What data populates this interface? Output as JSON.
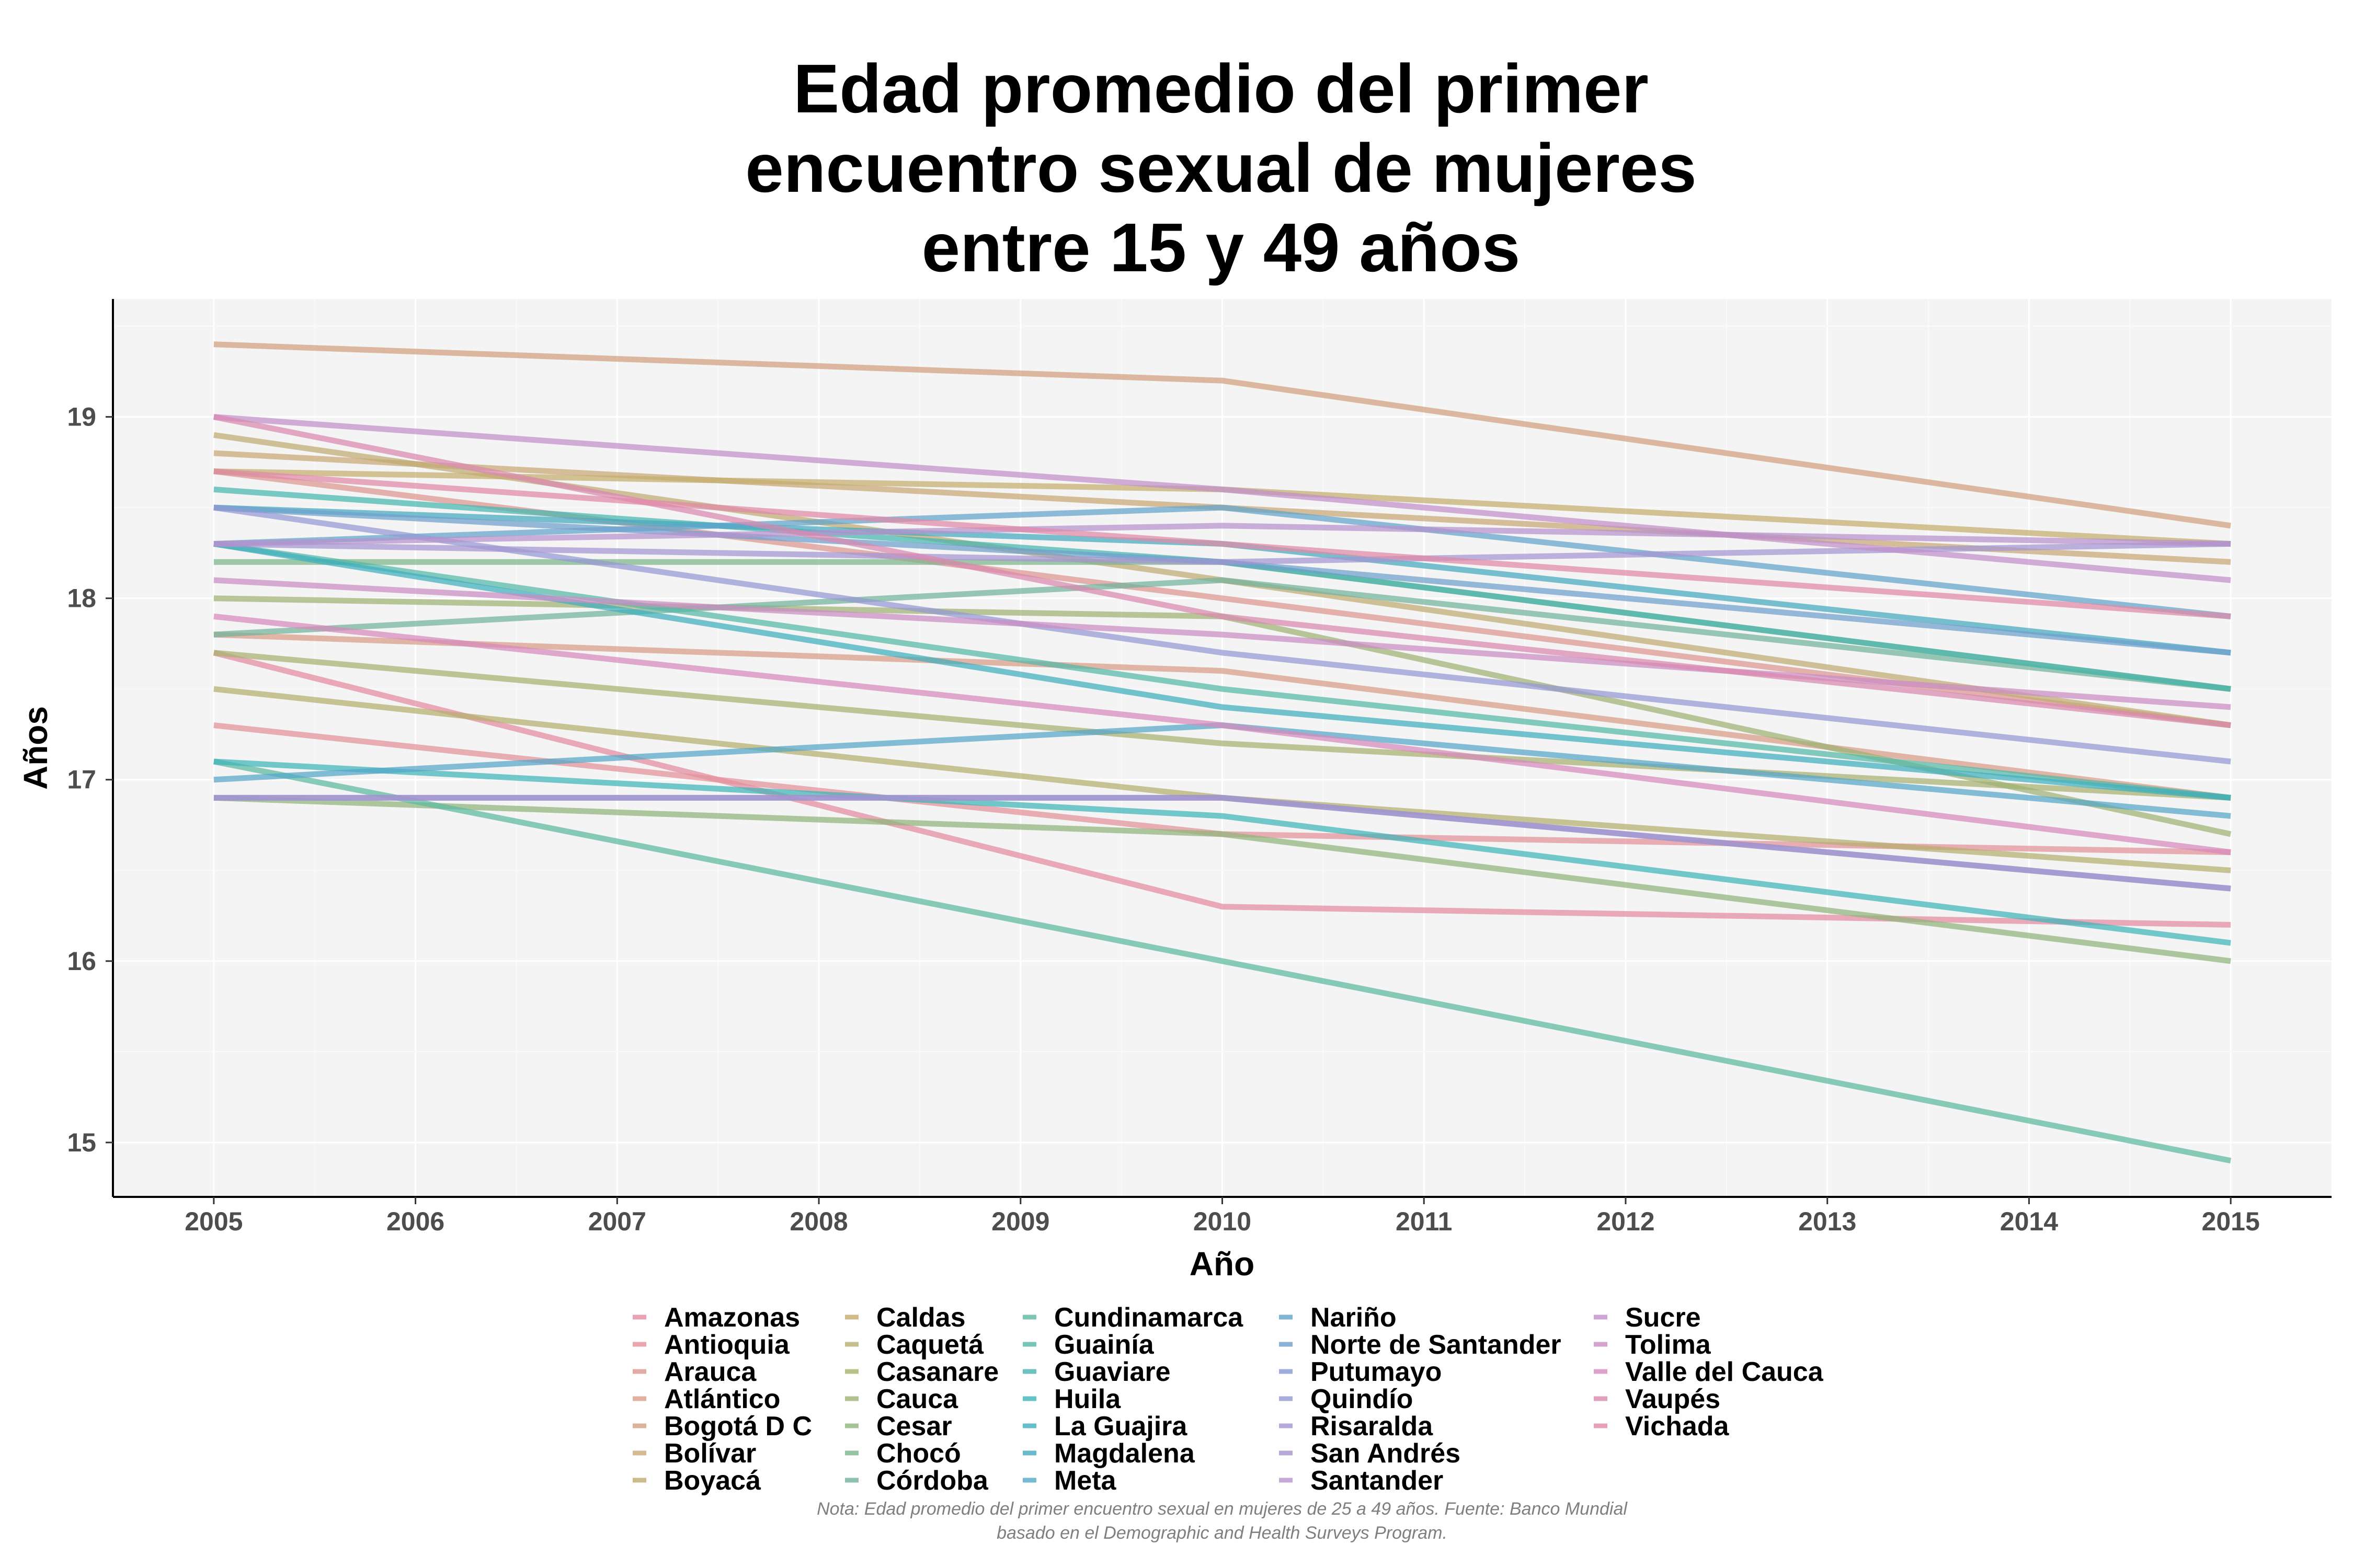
{
  "chart_data": {
    "type": "line",
    "title": [
      "Edad promedio del primer",
      "encuentro sexual de mujeres",
      "entre 15 y 49 años"
    ],
    "xlabel": "Año",
    "ylabel": "Años",
    "x": [
      2005,
      2010,
      2015
    ],
    "x_ticks": [
      "2005",
      "2006",
      "2007",
      "2008",
      "2009",
      "2010",
      "2011",
      "2012",
      "2013",
      "2014",
      "2015"
    ],
    "y_ticks": [
      "15",
      "16",
      "17",
      "18",
      "19"
    ],
    "xlim": [
      2004.5,
      2015.5
    ],
    "ylim": [
      14.7,
      19.65
    ],
    "grid": true,
    "legend_position": "bottom",
    "series": [
      {
        "name": "Amazonas",
        "color": "#E48AA0",
        "values": [
          17.7,
          16.3,
          16.2
        ]
      },
      {
        "name": "Antioquia",
        "color": "#E3909A",
        "values": [
          17.3,
          16.7,
          16.6
        ]
      },
      {
        "name": "Arauca",
        "color": "#DC9590",
        "values": [
          18.7,
          18.0,
          17.3
        ]
      },
      {
        "name": "Atlántico",
        "color": "#D99C86",
        "values": [
          17.8,
          17.6,
          16.9
        ]
      },
      {
        "name": "Bogotá D C",
        "color": "#D2A07E",
        "values": [
          19.4,
          19.2,
          18.4
        ]
      },
      {
        "name": "Bolívar",
        "color": "#C9A877",
        "values": [
          18.8,
          18.5,
          18.2
        ]
      },
      {
        "name": "Boyacá",
        "color": "#BFAA72",
        "values": [
          18.9,
          18.1,
          17.3
        ]
      },
      {
        "name": "Caldas",
        "color": "#C4AD6E",
        "values": [
          18.7,
          18.6,
          18.3
        ]
      },
      {
        "name": "Caquetá",
        "color": "#B5AF6D",
        "values": [
          17.5,
          16.9,
          16.5
        ]
      },
      {
        "name": "Casanare",
        "color": "#A8B06F",
        "values": [
          17.7,
          17.2,
          16.9
        ]
      },
      {
        "name": "Cauca",
        "color": "#9EB274",
        "values": [
          18.0,
          17.9,
          16.7
        ]
      },
      {
        "name": "Cesar",
        "color": "#8FB47C",
        "values": [
          16.9,
          16.7,
          16.0
        ]
      },
      {
        "name": "Chocó",
        "color": "#7DB58A",
        "values": [
          18.2,
          18.2,
          17.5
        ]
      },
      {
        "name": "Córdoba",
        "color": "#72B39B",
        "values": [
          17.8,
          18.1,
          17.5
        ]
      },
      {
        "name": "Cundinamarca",
        "color": "#5DB8A0",
        "values": [
          17.1,
          16.0,
          14.9
        ]
      },
      {
        "name": "Guainía",
        "color": "#55B7A8",
        "values": [
          18.3,
          17.5,
          16.9
        ]
      },
      {
        "name": "Guaviare",
        "color": "#46B5AF",
        "values": [
          18.6,
          18.2,
          17.5
        ]
      },
      {
        "name": "Huila",
        "color": "#3FB4B8",
        "values": [
          17.1,
          16.8,
          16.1
        ]
      },
      {
        "name": "La Guajira",
        "color": "#3EAFBC",
        "values": [
          18.3,
          17.4,
          16.9
        ]
      },
      {
        "name": "Magdalena",
        "color": "#45A9BF",
        "values": [
          18.5,
          18.3,
          17.7
        ]
      },
      {
        "name": "Meta",
        "color": "#55A6C7",
        "values": [
          17.0,
          17.3,
          16.8
        ]
      },
      {
        "name": "Nariño",
        "color": "#61A3CA",
        "values": [
          18.3,
          18.5,
          17.9
        ]
      },
      {
        "name": "Norte de Santander",
        "color": "#6F9FCD",
        "values": [
          18.5,
          18.2,
          17.7
        ]
      },
      {
        "name": "Putumayo",
        "color": "#839ACF",
        "values": [
          16.9,
          16.9,
          16.4
        ]
      },
      {
        "name": "Quindío",
        "color": "#9498D2",
        "values": [
          18.5,
          17.7,
          17.1
        ]
      },
      {
        "name": "Risaralda",
        "color": "#A395D1",
        "values": [
          18.3,
          18.2,
          18.3
        ]
      },
      {
        "name": "San Andrés",
        "color": "#A893CF",
        "values": [
          16.9,
          16.9,
          16.4
        ]
      },
      {
        "name": "Santander",
        "color": "#B692CD",
        "values": [
          18.3,
          18.4,
          18.3
        ]
      },
      {
        "name": "Sucre",
        "color": "#C08FCA",
        "values": [
          19.0,
          18.6,
          18.1
        ]
      },
      {
        "name": "Tolima",
        "color": "#CB8CC4",
        "values": [
          18.1,
          17.8,
          17.4
        ]
      },
      {
        "name": "Valle del Cauca",
        "color": "#D689BB",
        "values": [
          17.9,
          17.3,
          16.6
        ]
      },
      {
        "name": "Vaupés",
        "color": "#DA88AE",
        "values": [
          19.0,
          17.9,
          17.3
        ]
      },
      {
        "name": "Vichada",
        "color": "#E089A6",
        "values": [
          18.7,
          18.3,
          17.9
        ]
      }
    ],
    "caption": [
      "Nota: Edad promedio del primer encuentro sexual en mujeres de 25 a 49 años. Fuente: Banco Mundial",
      "basado en el Demographic and Health Surveys Program."
    ]
  }
}
